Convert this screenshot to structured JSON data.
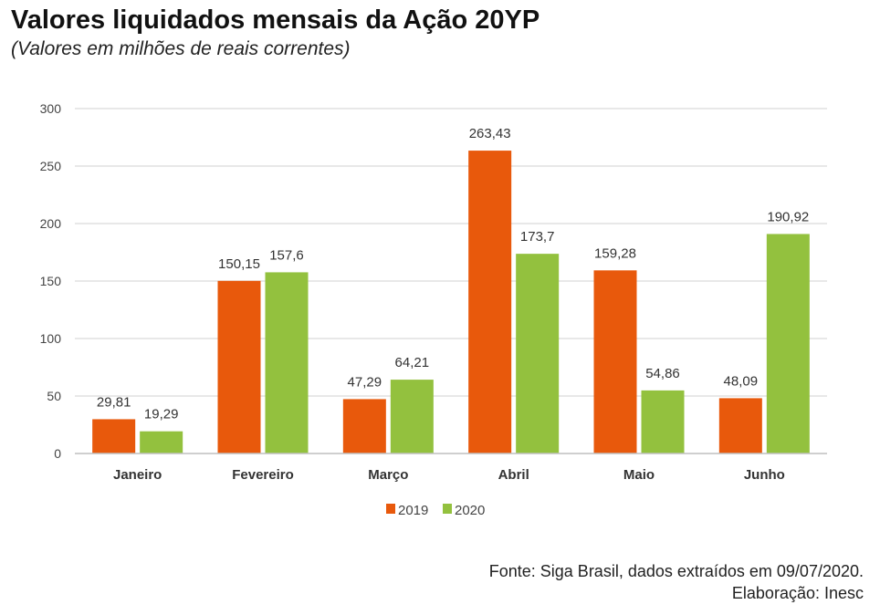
{
  "header": {
    "title": "Valores liquidados mensais da Ação 20YP",
    "subtitle": "(Valores em milhões de reais correntes)"
  },
  "chart_data": {
    "type": "bar",
    "title": "Valores liquidados mensais da Ação 20YP",
    "subtitle": "(Valores em milhões de reais correntes)",
    "xlabel": "",
    "ylabel": "",
    "categories": [
      "Janeiro",
      "Fevereiro",
      "Março",
      "Abril",
      "Maio",
      "Junho"
    ],
    "series": [
      {
        "name": "2019",
        "values": [
          29.81,
          150.15,
          47.29,
          263.43,
          159.28,
          48.09
        ],
        "labels": [
          "29,81",
          "150,15",
          "47,29",
          "263,43",
          "159,28",
          "48,09"
        ],
        "color": "#e8590c"
      },
      {
        "name": "2020",
        "values": [
          19.29,
          157.6,
          64.21,
          173.7,
          54.86,
          190.92
        ],
        "labels": [
          "19,29",
          "157,6",
          "64,21",
          "173,7",
          "54,86",
          "190,92"
        ],
        "color": "#93c13e"
      }
    ],
    "ylim": [
      0,
      300
    ],
    "yticks": [
      0,
      50,
      100,
      150,
      200,
      250,
      300
    ],
    "grid": true,
    "legend": "bottom-center"
  },
  "footer": {
    "source": "Fonte: Siga Brasil, dados extraídos em 09/07/2020.",
    "credit": "Elaboração: Inesc"
  }
}
